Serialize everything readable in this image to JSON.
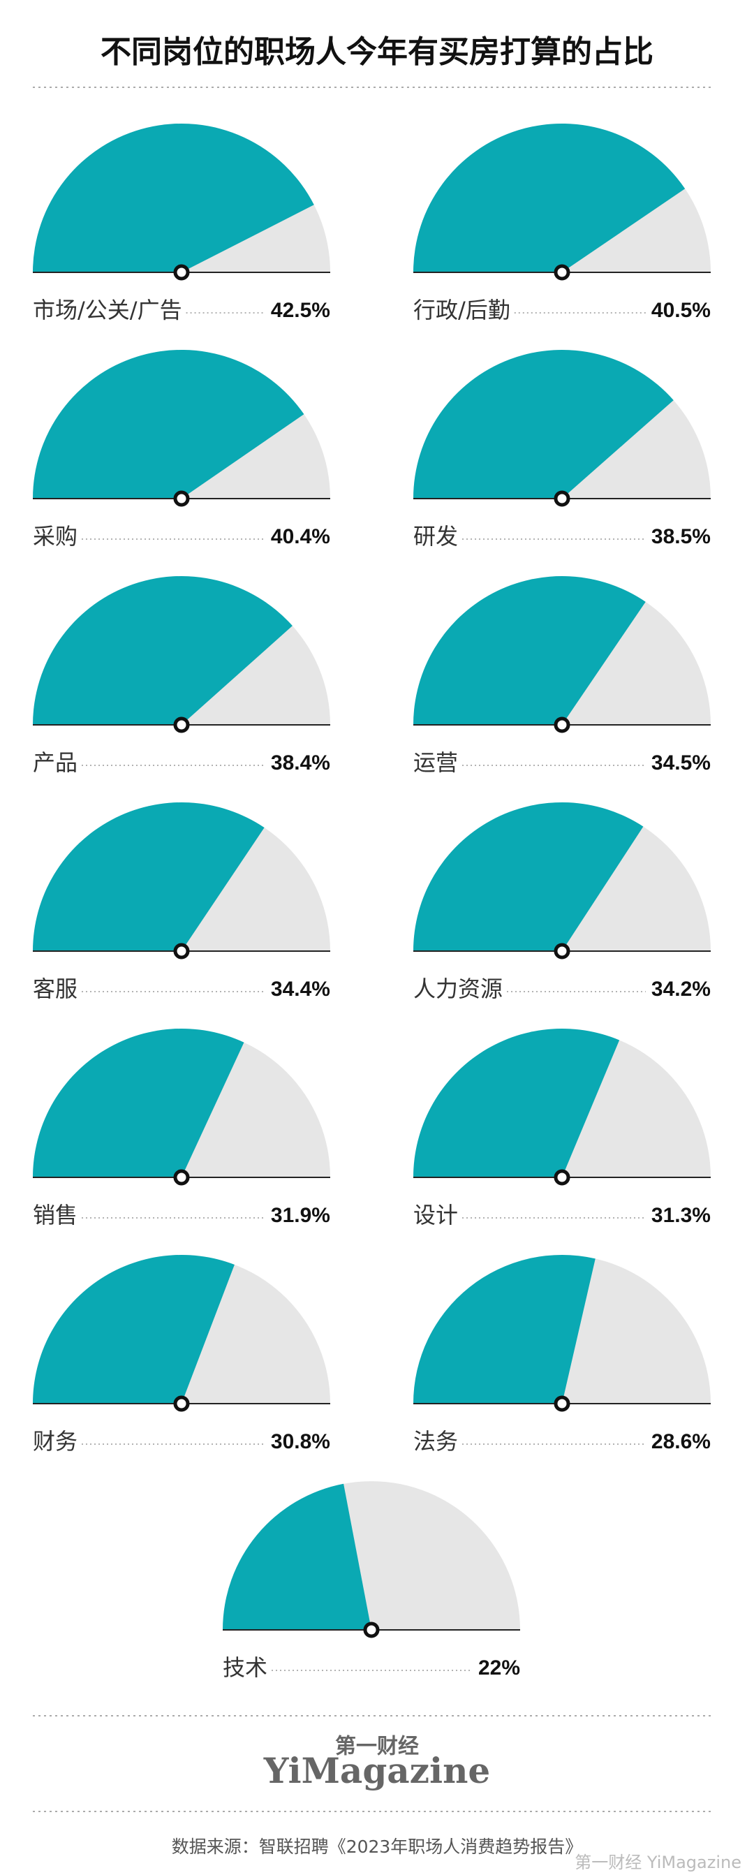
{
  "chart_data": {
    "type": "gauge",
    "title": "不同岗位的职场人今年有买房打算的占比",
    "categories": [
      "市场/公关/广告",
      "行政/后勤",
      "采购",
      "研发",
      "产品",
      "运营",
      "客服",
      "人力资源",
      "销售",
      "设计",
      "财务",
      "法务",
      "技术"
    ],
    "values": [
      42.5,
      40.5,
      40.4,
      38.5,
      38.4,
      34.5,
      34.4,
      34.2,
      31.9,
      31.3,
      30.8,
      28.6,
      22
    ],
    "value_labels": [
      "42.5%",
      "40.5%",
      "40.4%",
      "38.5%",
      "38.4%",
      "34.5%",
      "34.4%",
      "34.2%",
      "31.9%",
      "31.3%",
      "30.8%",
      "28.6%",
      "22%"
    ],
    "ylim": [
      0,
      50
    ],
    "color": "#0aa9b3",
    "background_color": "#e6e6e6",
    "brand": "第一财经",
    "brand_name": "YiMagazine",
    "source": "数据来源：智联招聘《2023年职场人消费趋势报告》",
    "watermark": "第一财经 YiMagazine"
  }
}
